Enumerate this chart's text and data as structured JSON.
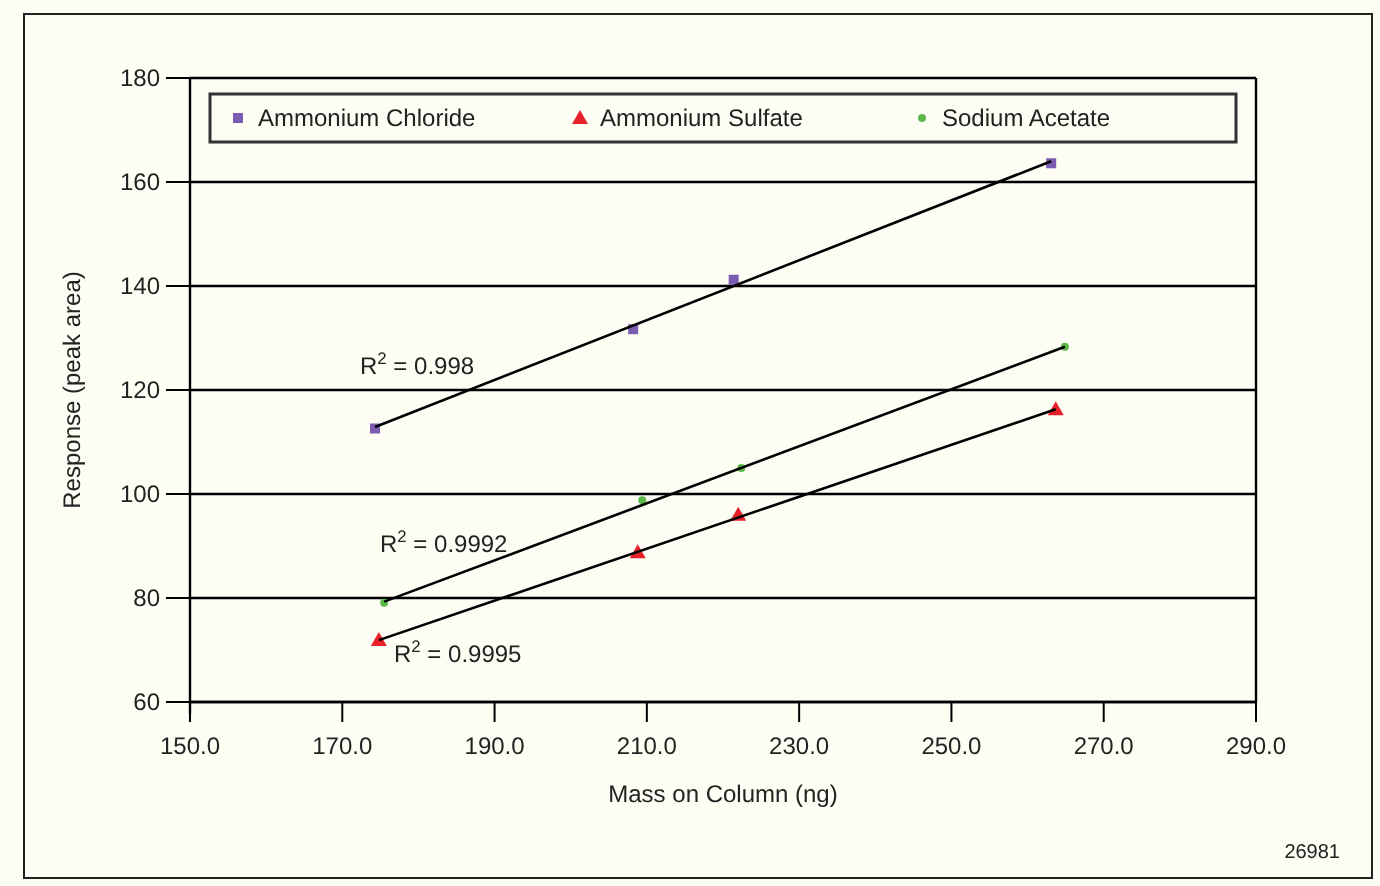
{
  "chart_data": {
    "type": "scatter",
    "xlabel": "Mass on Column (ng)",
    "ylabel": "Response (peak area)",
    "xlim": [
      150,
      290
    ],
    "xticks": [
      {
        "value": 150,
        "label": "150.0"
      },
      {
        "value": 170,
        "label": "170.0"
      },
      {
        "value": 190,
        "label": "190.0"
      },
      {
        "value": 210,
        "label": "210.0"
      },
      {
        "value": 230,
        "label": "230.0"
      },
      {
        "value": 250,
        "label": "250.0"
      },
      {
        "value": 270,
        "label": "270.0"
      },
      {
        "value": 290,
        "label": "290.0"
      }
    ],
    "ylim": [
      60,
      180
    ],
    "yticks": [
      60,
      80,
      100,
      120,
      140,
      160,
      180
    ],
    "grid": "y",
    "legend": "top",
    "series": [
      {
        "name": "Ammonium Chloride",
        "color": "#7b5cb0",
        "marker": "square",
        "x": [
          174.3,
          208.2,
          221.4,
          263.1
        ],
        "values": [
          112.6,
          131.7,
          141.2,
          163.6
        ]
      },
      {
        "name": "Ammonium Sulfate",
        "color": "#e8202a",
        "marker": "triangle",
        "x": [
          174.8,
          208.8,
          222.0,
          263.7
        ],
        "values": [
          71.9,
          88.8,
          96.0,
          116.3
        ]
      },
      {
        "name": "Sodium Acetate",
        "color": "#5cb848",
        "marker": "circle",
        "x": [
          175.5,
          209.4,
          222.4,
          264.9
        ],
        "values": [
          79.1,
          98.8,
          105.0,
          128.3
        ]
      },
      {
        "type": "line",
        "color": "#000000",
        "marker": "none",
        "x": [
          174.3,
          263.1
        ],
        "values": [
          112.9,
          164.0
        ]
      },
      {
        "type": "line",
        "color": "#000000",
        "marker": "none",
        "x": [
          174.8,
          263.7
        ],
        "values": [
          71.9,
          116.3
        ]
      },
      {
        "type": "line",
        "color": "#000000",
        "marker": "none",
        "x": [
          175.5,
          264.9
        ],
        "values": [
          79.3,
          128.3
        ]
      }
    ],
    "annotations": [
      "R$^{2}$ = 0.998",
      "R$^{2}$ = 0.9992",
      "R$^{2}$ = 0.9995",
      "26981"
    ]
  }
}
